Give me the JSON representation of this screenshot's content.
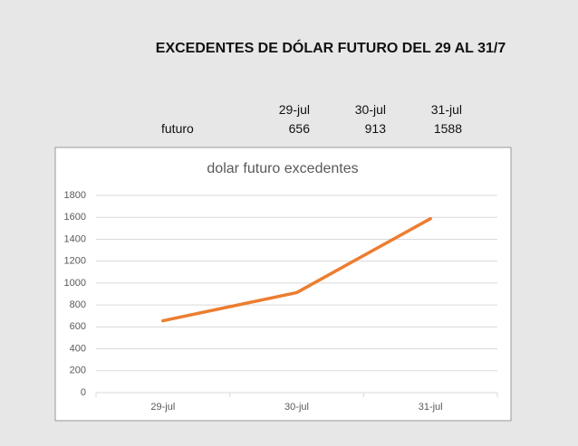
{
  "header": {
    "title": "EXCEDENTES DE DÓLAR FUTURO DEL 29 AL 31/7"
  },
  "table": {
    "columns": [
      "29-jul",
      "30-jul",
      "31-jul"
    ],
    "rows": [
      {
        "label": "futuro",
        "values": [
          656,
          913,
          1588
        ]
      }
    ]
  },
  "chart_data": {
    "type": "line",
    "title": "dolar futuro excedentes",
    "categories": [
      "29-jul",
      "30-jul",
      "31-jul"
    ],
    "series": [
      {
        "name": "futuro",
        "color": "#ed7d31",
        "values": [
          656,
          913,
          1588
        ]
      }
    ],
    "ylim": [
      0,
      1800
    ],
    "yticks": [
      0,
      200,
      400,
      600,
      800,
      1000,
      1200,
      1400,
      1600,
      1800
    ],
    "grid": true
  }
}
